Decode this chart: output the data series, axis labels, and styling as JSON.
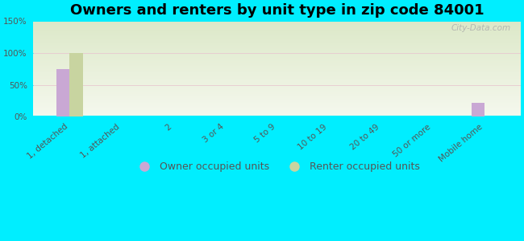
{
  "title": "Owners and renters by unit type in zip code 84001",
  "categories": [
    "1, detached",
    "1, attached",
    "2",
    "3 or 4",
    "5 to 9",
    "10 to 19",
    "20 to 49",
    "50 or more",
    "Mobile home"
  ],
  "owner_values": [
    75,
    0,
    0,
    0,
    0,
    0,
    0,
    0,
    22
  ],
  "renter_values": [
    100,
    0,
    0,
    0,
    0,
    0,
    0,
    0,
    0
  ],
  "owner_color": "#c9a8d4",
  "renter_color": "#c8d4a0",
  "background_outer": "#00eeff",
  "background_plot_top": "#dce8c8",
  "background_plot_bottom": "#f5f8ee",
  "ylim": [
    0,
    150
  ],
  "yticks": [
    0,
    50,
    100,
    150
  ],
  "ytick_labels": [
    "0%",
    "50%",
    "100%",
    "150%"
  ],
  "bar_width": 0.25,
  "title_fontsize": 13,
  "tick_fontsize": 7.5,
  "legend_fontsize": 9,
  "watermark": "City-Data.com"
}
